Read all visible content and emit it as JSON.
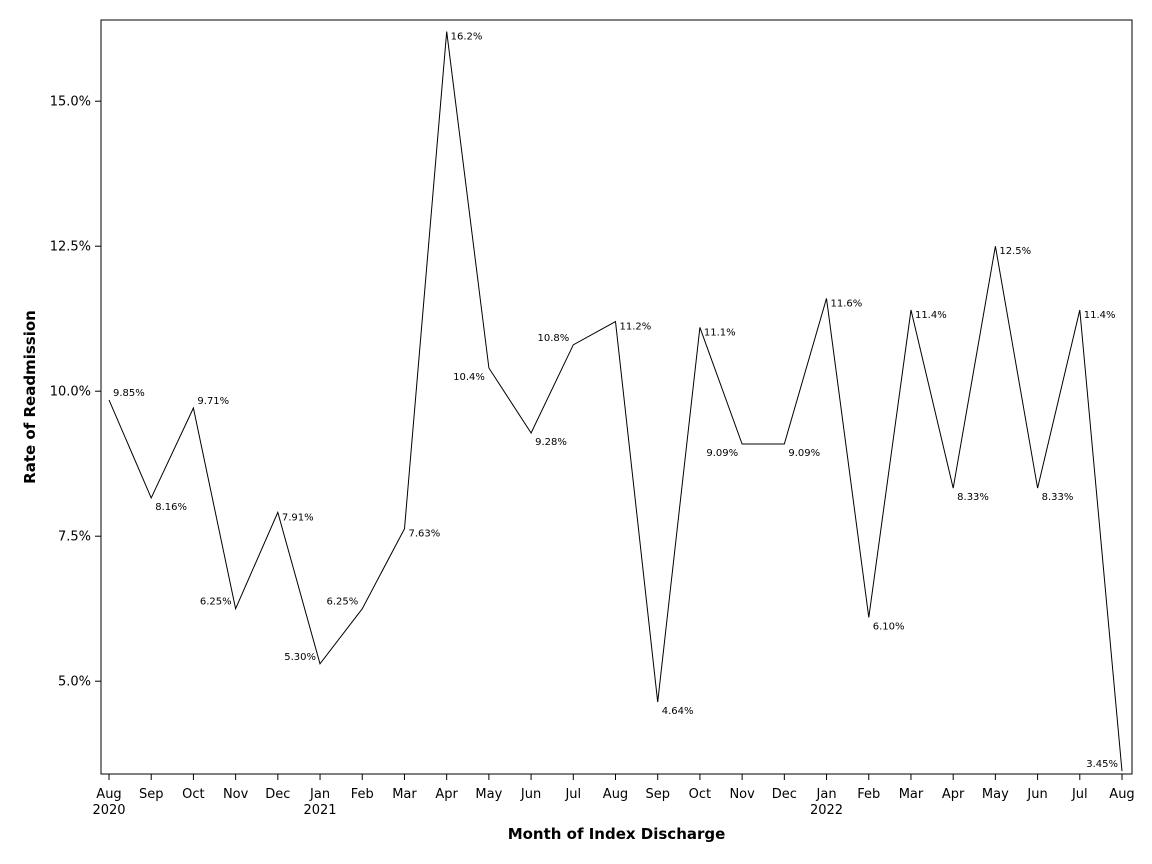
{
  "chart_data": {
    "type": "line",
    "xlabel": "Month of Index Discharge",
    "ylabel": "Rate of Readmission",
    "ylim": [
      3.4,
      16.4
    ],
    "grid": false,
    "y_ticks": [
      5.0,
      7.5,
      10.0,
      12.5,
      15.0
    ],
    "y_tick_labels": [
      "5.0%",
      "7.5%",
      "10.0%",
      "12.5%",
      "15.0%"
    ],
    "x": [
      "2020-08",
      "2020-09",
      "2020-10",
      "2020-11",
      "2020-12",
      "2021-01",
      "2021-02",
      "2021-03",
      "2021-04",
      "2021-05",
      "2021-06",
      "2021-07",
      "2021-08",
      "2021-09",
      "2021-10",
      "2021-11",
      "2021-12",
      "2022-01",
      "2022-02",
      "2022-03",
      "2022-04",
      "2022-05",
      "2022-06",
      "2022-07",
      "2022-08"
    ],
    "x_tick_labels": [
      "Aug",
      "Sep",
      "Oct",
      "Nov",
      "Dec",
      "Jan",
      "Feb",
      "Mar",
      "Apr",
      "May",
      "Jun",
      "Jul",
      "Aug",
      "Sep",
      "Oct",
      "Nov",
      "Dec",
      "Jan",
      "Feb",
      "Mar",
      "Apr",
      "May",
      "Jun",
      "Jul",
      "Aug"
    ],
    "x_year_labels": {
      "0": "2020",
      "5": "2021",
      "17": "2022"
    },
    "series": [
      {
        "values": [
          9.85,
          8.16,
          9.71,
          6.25,
          7.91,
          5.3,
          6.25,
          7.63,
          16.2,
          10.4,
          9.28,
          10.8,
          11.2,
          4.64,
          11.1,
          9.09,
          9.09,
          11.6,
          6.1,
          11.4,
          8.33,
          12.5,
          8.33,
          11.4,
          3.45
        ],
        "labels": [
          "9.85%",
          "8.16%",
          "9.71%",
          "6.25%",
          "7.91%",
          "5.30%",
          "6.25%",
          "7.63%",
          "16.2%",
          "10.4%",
          "9.28%",
          "10.8%",
          "11.2%",
          "4.64%",
          "11.1%",
          "9.09%",
          "9.09%",
          "11.6%",
          "6.10%",
          "11.4%",
          "8.33%",
          "12.5%",
          "8.33%",
          "11.4%",
          "3.45%"
        ],
        "color": "#000000"
      }
    ]
  }
}
